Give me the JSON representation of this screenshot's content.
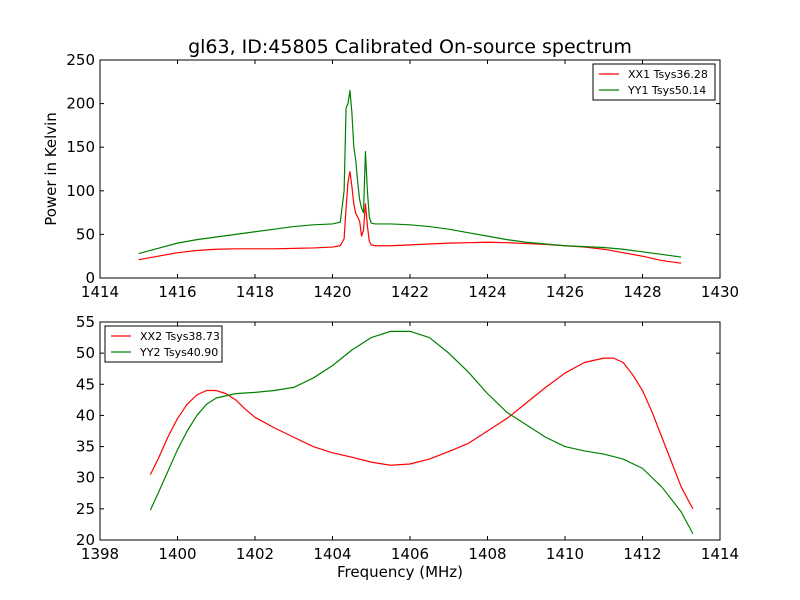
{
  "chart_data": [
    {
      "type": "line",
      "title": "gl63, ID:45805 Calibrated On-source spectrum",
      "xlabel": "",
      "ylabel": "Power in Kelvin",
      "xlim": [
        1414,
        1430
      ],
      "ylim": [
        0,
        250
      ],
      "xticks": [
        1414,
        1416,
        1418,
        1420,
        1422,
        1424,
        1426,
        1428,
        1430
      ],
      "yticks": [
        0,
        50,
        100,
        150,
        200,
        250
      ],
      "grid": false,
      "legend_position": "top-right",
      "series": [
        {
          "name": "XX1 Tsys36.28",
          "color": "#ff0000",
          "x": [
            1415.0,
            1415.5,
            1416.0,
            1416.5,
            1417.0,
            1417.5,
            1418.0,
            1418.5,
            1419.0,
            1419.5,
            1420.0,
            1420.2,
            1420.3,
            1420.35,
            1420.4,
            1420.45,
            1420.5,
            1420.55,
            1420.6,
            1420.65,
            1420.7,
            1420.75,
            1420.8,
            1420.85,
            1420.9,
            1420.95,
            1421.0,
            1421.1,
            1421.5,
            1422.0,
            1422.5,
            1423.0,
            1423.5,
            1424.0,
            1424.5,
            1425.0,
            1425.5,
            1426.0,
            1426.5,
            1427.0,
            1427.5,
            1428.0,
            1428.5,
            1429.0
          ],
          "y": [
            21,
            25,
            29,
            31.5,
            33,
            33.5,
            33.5,
            33.5,
            34,
            34.5,
            35.5,
            37,
            45,
            80,
            110,
            122,
            105,
            85,
            74,
            70,
            65,
            48,
            55,
            85,
            60,
            42,
            38,
            37,
            37,
            38,
            39,
            40,
            40.5,
            41,
            40.5,
            39.5,
            38.5,
            37,
            35.5,
            33,
            29,
            25,
            20,
            17
          ]
        },
        {
          "name": "YY1 Tsys50.14",
          "color": "#008000",
          "x": [
            1415.0,
            1415.5,
            1416.0,
            1416.5,
            1417.0,
            1417.5,
            1418.0,
            1418.5,
            1419.0,
            1419.5,
            1420.0,
            1420.2,
            1420.3,
            1420.35,
            1420.4,
            1420.45,
            1420.5,
            1420.55,
            1420.6,
            1420.65,
            1420.7,
            1420.75,
            1420.8,
            1420.85,
            1420.9,
            1420.95,
            1421.0,
            1421.1,
            1421.5,
            1422.0,
            1422.5,
            1423.0,
            1423.5,
            1424.0,
            1424.5,
            1425.0,
            1425.5,
            1426.0,
            1426.5,
            1427.0,
            1427.5,
            1428.0,
            1428.5,
            1429.0
          ],
          "y": [
            28,
            34,
            40,
            44,
            47,
            50,
            53,
            56,
            59,
            61,
            62,
            64,
            100,
            195,
            200,
            215,
            190,
            150,
            135,
            110,
            90,
            80,
            75,
            145,
            100,
            70,
            63,
            62,
            62,
            61,
            59,
            56,
            52,
            48,
            44,
            41,
            39,
            37,
            36,
            35,
            33,
            30,
            27,
            24
          ]
        }
      ]
    },
    {
      "type": "line",
      "title": "",
      "xlabel": "Frequency (MHz)",
      "ylabel": "",
      "xlim": [
        1398,
        1414
      ],
      "ylim": [
        20,
        55
      ],
      "xticks": [
        1398,
        1400,
        1402,
        1404,
        1406,
        1408,
        1410,
        1412,
        1414
      ],
      "yticks": [
        20,
        25,
        30,
        35,
        40,
        45,
        50,
        55
      ],
      "grid": false,
      "legend_position": "top-left",
      "series": [
        {
          "name": "XX2 Tsys38.73",
          "color": "#ff0000",
          "x": [
            1399.3,
            1399.5,
            1399.75,
            1400.0,
            1400.25,
            1400.5,
            1400.75,
            1401.0,
            1401.25,
            1401.5,
            1401.75,
            1402.0,
            1402.5,
            1403.0,
            1403.5,
            1404.0,
            1404.5,
            1405.0,
            1405.5,
            1406.0,
            1406.5,
            1407.0,
            1407.5,
            1408.0,
            1408.5,
            1409.0,
            1409.5,
            1410.0,
            1410.5,
            1411.0,
            1411.25,
            1411.5,
            1411.75,
            1412.0,
            1412.25,
            1412.5,
            1412.75,
            1413.0,
            1413.3
          ],
          "y": [
            30.5,
            33,
            36.5,
            39.5,
            41.8,
            43.3,
            44,
            44,
            43.5,
            42.5,
            41,
            39.7,
            38,
            36.5,
            35,
            34,
            33.3,
            32.5,
            32,
            32.2,
            33,
            34.2,
            35.5,
            37.5,
            39.5,
            42,
            44.5,
            46.8,
            48.5,
            49.2,
            49.2,
            48.5,
            46.5,
            44,
            40.5,
            36.5,
            32.5,
            28.5,
            25
          ]
        },
        {
          "name": "YY2 Tsys40.90",
          "color": "#008000",
          "x": [
            1399.3,
            1399.5,
            1399.75,
            1400.0,
            1400.25,
            1400.5,
            1400.75,
            1401.0,
            1401.5,
            1402.0,
            1402.5,
            1403.0,
            1403.5,
            1404.0,
            1404.5,
            1405.0,
            1405.5,
            1406.0,
            1406.5,
            1407.0,
            1407.5,
            1408.0,
            1408.5,
            1409.0,
            1409.5,
            1410.0,
            1410.5,
            1411.0,
            1411.5,
            1412.0,
            1412.5,
            1413.0,
            1413.3
          ],
          "y": [
            24.8,
            27.5,
            31,
            34.5,
            37.5,
            40,
            41.8,
            42.8,
            43.5,
            43.7,
            44,
            44.5,
            46,
            48,
            50.5,
            52.5,
            53.5,
            53.5,
            52.5,
            50,
            47,
            43.5,
            40.5,
            38.5,
            36.5,
            35,
            34.3,
            33.8,
            33,
            31.5,
            28.5,
            24.5,
            21
          ]
        }
      ]
    }
  ]
}
